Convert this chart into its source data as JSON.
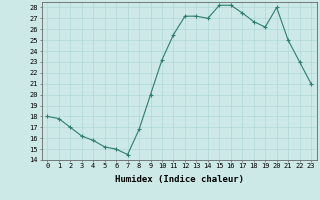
{
  "x": [
    0,
    1,
    2,
    3,
    4,
    5,
    6,
    7,
    8,
    9,
    10,
    11,
    12,
    13,
    14,
    15,
    16,
    17,
    18,
    19,
    20,
    21,
    22,
    23
  ],
  "y": [
    18.0,
    17.8,
    17.0,
    16.2,
    15.8,
    15.2,
    15.0,
    14.5,
    16.8,
    20.0,
    23.2,
    25.5,
    27.2,
    27.2,
    27.0,
    28.2,
    28.2,
    27.5,
    26.7,
    26.2,
    28.0,
    25.0,
    23.0,
    21.0
  ],
  "line_color": "#2e7d6e",
  "marker": "+",
  "markersize": 3.5,
  "bg_color": "#cce9e7",
  "grid_color": "#b0d8d5",
  "xlabel": "Humidex (Indice chaleur)",
  "xlim": [
    -0.5,
    23.5
  ],
  "ylim": [
    14,
    28.5
  ],
  "yticks": [
    14,
    15,
    16,
    17,
    18,
    19,
    20,
    21,
    22,
    23,
    24,
    25,
    26,
    27,
    28
  ],
  "xticks": [
    0,
    1,
    2,
    3,
    4,
    5,
    6,
    7,
    8,
    9,
    10,
    11,
    12,
    13,
    14,
    15,
    16,
    17,
    18,
    19,
    20,
    21,
    22,
    23
  ],
  "tick_fontsize": 5.0,
  "xlabel_fontsize": 6.5,
  "linewidth": 0.8,
  "markeredgewidth": 0.8
}
